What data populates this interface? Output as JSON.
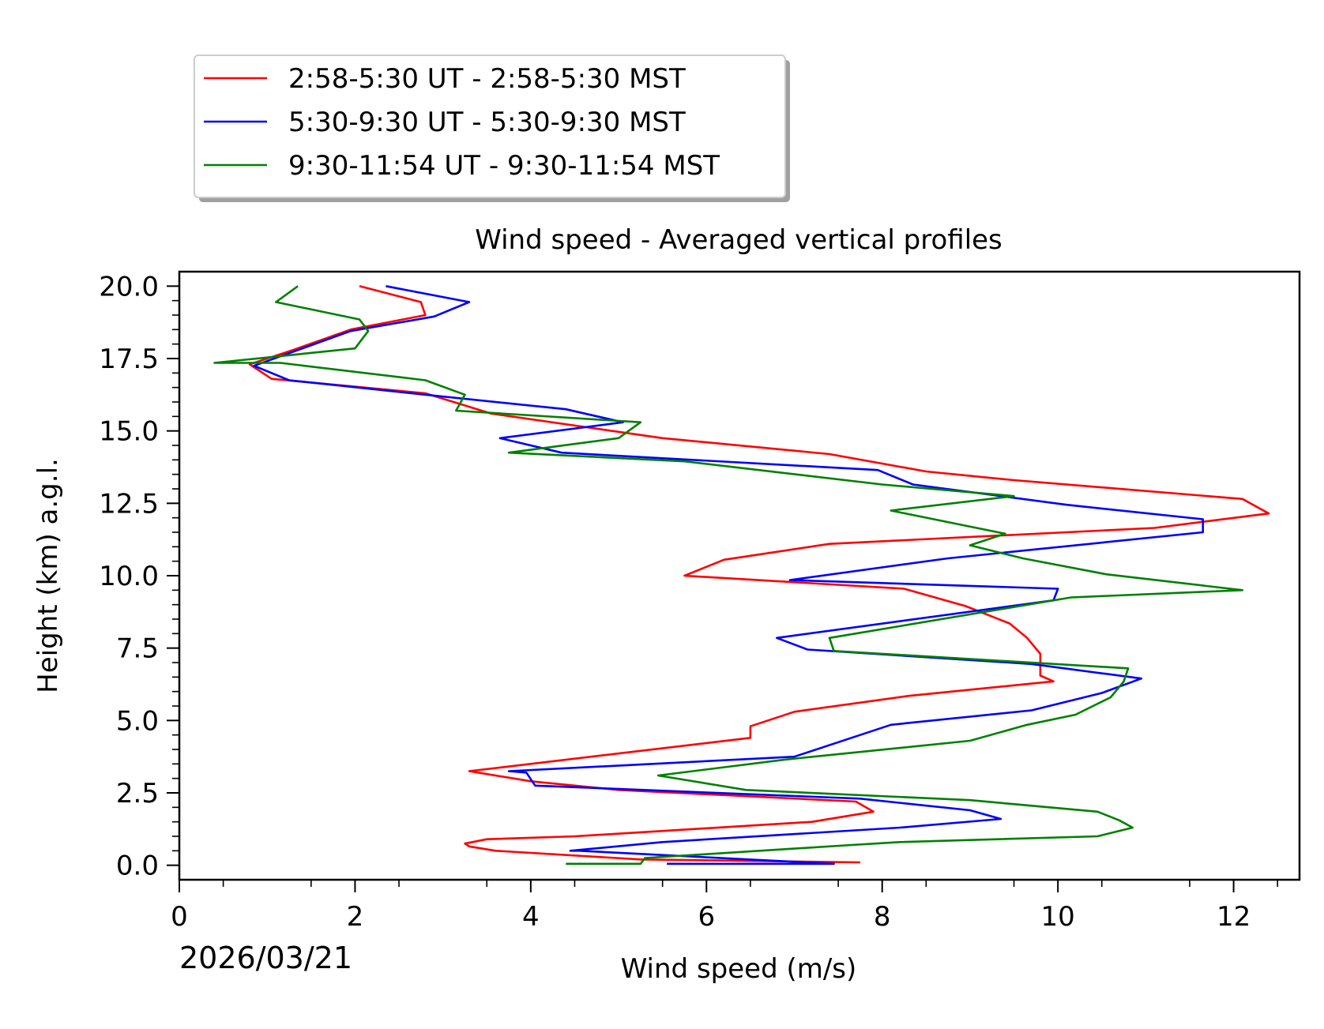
{
  "chart_data": {
    "type": "line",
    "title": "Wind speed - Averaged vertical profiles",
    "xlabel": "Wind speed (m/s)",
    "ylabel": "Height (km) a.g.l.",
    "xlim": [
      0,
      12.75
    ],
    "ylim": [
      -0.5,
      20.5
    ],
    "x_ticks": [
      "0",
      "2",
      "4",
      "6",
      "8",
      "10",
      "12"
    ],
    "y_ticks": [
      "0.0",
      "2.5",
      "5.0",
      "7.5",
      "10.0",
      "12.5",
      "15.0",
      "17.5",
      "20.0"
    ],
    "date_label": "2026/03/21",
    "legend_position": "upper-left outside",
    "series": [
      {
        "name": "2:58-5:30 UT - 2:58-5:30 MST",
        "color": "#ff0000",
        "points": [
          [
            7.75,
            0.1
          ],
          [
            5.25,
            0.2
          ],
          [
            3.6,
            0.5
          ],
          [
            3.3,
            0.65
          ],
          [
            3.25,
            0.75
          ],
          [
            3.5,
            0.9
          ],
          [
            4.5,
            1.0
          ],
          [
            7.2,
            1.5
          ],
          [
            7.9,
            1.85
          ],
          [
            7.7,
            2.2
          ],
          [
            5,
            2.6
          ],
          [
            4,
            2.9
          ],
          [
            3.3,
            3.25
          ],
          [
            6.5,
            4.4
          ],
          [
            6.5,
            4.8
          ],
          [
            7.0,
            5.3
          ],
          [
            8.3,
            5.85
          ],
          [
            9.95,
            6.35
          ],
          [
            9.8,
            6.55
          ],
          [
            9.8,
            7.3
          ],
          [
            9.65,
            7.85
          ],
          [
            9.45,
            8.35
          ],
          [
            8.95,
            8.95
          ],
          [
            8.25,
            9.55
          ],
          [
            5.75,
            10
          ],
          [
            6.2,
            10.55
          ],
          [
            7.4,
            11.1
          ],
          [
            11.1,
            11.65
          ],
          [
            12.4,
            12.15
          ],
          [
            12.1,
            12.65
          ],
          [
            9.5,
            13.3
          ],
          [
            8.5,
            13.6
          ],
          [
            7.4,
            14.2
          ],
          [
            5.5,
            14.75
          ],
          [
            3.55,
            15.6
          ],
          [
            2.8,
            16.3
          ],
          [
            1.05,
            16.8
          ],
          [
            0.8,
            17.3
          ],
          [
            1.3,
            17.8
          ],
          [
            1.95,
            18.5
          ],
          [
            2.8,
            19.0
          ],
          [
            2.75,
            19.45
          ],
          [
            2.05,
            20.0
          ]
        ]
      },
      {
        "name": "5:30-9:30 UT - 5:30-9:30 MST",
        "color": "#0000ff",
        "points": [
          [
            5.55,
            0.05
          ],
          [
            7.45,
            0.05
          ],
          [
            4.55,
            0.5
          ],
          [
            4.45,
            0.5
          ],
          [
            5.5,
            0.8
          ],
          [
            8.2,
            1.3
          ],
          [
            9.35,
            1.6
          ],
          [
            9.0,
            1.9
          ],
          [
            7.75,
            2.3
          ],
          [
            4.05,
            2.75
          ],
          [
            3.95,
            3.2
          ],
          [
            3.75,
            3.25
          ],
          [
            7.0,
            3.75
          ],
          [
            8.1,
            4.85
          ],
          [
            9.7,
            5.35
          ],
          [
            10.5,
            5.95
          ],
          [
            10.95,
            6.45
          ],
          [
            9.7,
            6.95
          ],
          [
            7.15,
            7.45
          ],
          [
            6.8,
            7.85
          ],
          [
            9.95,
            9.15
          ],
          [
            9.95,
            9.15
          ],
          [
            10.0,
            9.55
          ],
          [
            6.95,
            9.85
          ],
          [
            8.75,
            10.6
          ],
          [
            11.65,
            11.5
          ],
          [
            11.65,
            11.95
          ],
          [
            10.1,
            12.45
          ],
          [
            8.35,
            13.15
          ],
          [
            7.95,
            13.65
          ],
          [
            4.35,
            14.25
          ],
          [
            3.65,
            14.75
          ],
          [
            5.05,
            15.3
          ],
          [
            4.4,
            15.75
          ],
          [
            2.8,
            16.25
          ],
          [
            1.25,
            16.75
          ],
          [
            0.85,
            17.25
          ],
          [
            1.95,
            18.45
          ],
          [
            2.9,
            18.95
          ],
          [
            3.3,
            19.45
          ],
          [
            2.35,
            20.0
          ]
        ]
      },
      {
        "name": "9:30-11:54 UT - 9:30-11:54 MST",
        "color": "#008000",
        "points": [
          [
            4.4,
            0.05
          ],
          [
            5.25,
            0.05
          ],
          [
            5.3,
            0.25
          ],
          [
            7.65,
            0.7
          ],
          [
            8.2,
            0.8
          ],
          [
            10.45,
            1.0
          ],
          [
            10.85,
            1.3
          ],
          [
            10.7,
            1.55
          ],
          [
            10.45,
            1.85
          ],
          [
            9.0,
            2.25
          ],
          [
            6.45,
            2.6
          ],
          [
            5.45,
            3.1
          ],
          [
            6.9,
            3.65
          ],
          [
            9.0,
            4.3
          ],
          [
            9.65,
            4.85
          ],
          [
            10.2,
            5.2
          ],
          [
            10.6,
            5.8
          ],
          [
            10.75,
            6.35
          ],
          [
            10.8,
            6.8
          ],
          [
            7.45,
            7.4
          ],
          [
            7.4,
            7.85
          ],
          [
            10.15,
            9.25
          ],
          [
            12.1,
            9.5
          ],
          [
            10.55,
            10.05
          ],
          [
            9.6,
            10.6
          ],
          [
            9.0,
            11.05
          ],
          [
            9.4,
            11.45
          ],
          [
            8.1,
            12.25
          ],
          [
            9.5,
            12.75
          ],
          [
            8.0,
            13.15
          ],
          [
            5.75,
            13.95
          ],
          [
            3.75,
            14.25
          ],
          [
            5.0,
            14.75
          ],
          [
            5.25,
            15.3
          ],
          [
            3.15,
            15.7
          ],
          [
            3.25,
            16.25
          ],
          [
            2.8,
            16.75
          ],
          [
            1.15,
            17.35
          ],
          [
            0.4,
            17.35
          ],
          [
            2.0,
            17.85
          ],
          [
            2.15,
            18.45
          ],
          [
            2.05,
            18.85
          ],
          [
            1.1,
            19.45
          ],
          [
            1.35,
            20.0
          ]
        ]
      }
    ]
  }
}
